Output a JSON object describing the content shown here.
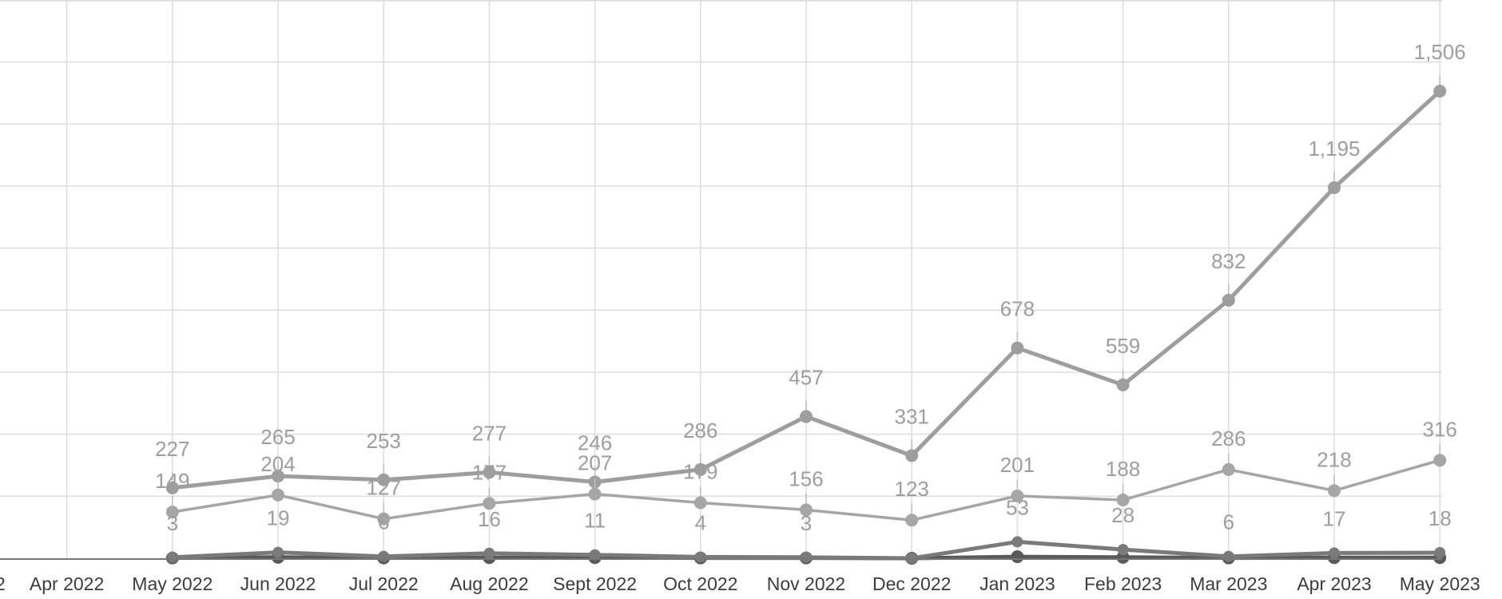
{
  "chart_data": {
    "type": "line",
    "title": "",
    "xlabel": "",
    "ylabel": "",
    "ylim": [
      0,
      1800
    ],
    "grid": true,
    "legend": "none",
    "partial_first_tick": "2",
    "categories": [
      "Apr 2022",
      "May 2022",
      "Jun 2022",
      "Jul 2022",
      "Aug 2022",
      "Sept 2022",
      "Oct 2022",
      "Nov 2022",
      "Dec 2022",
      "Jan 2023",
      "Feb 2023",
      "Mar 2023",
      "Apr 2023",
      "May 2023"
    ],
    "colors": {
      "series_a": "#9e9e9e",
      "series_b": "#a6a6a6",
      "series_c": "#7a7a7a",
      "series_d": "#595959",
      "grid": "#dddddd",
      "axis": "#777777"
    },
    "series": [
      {
        "values": [
          null,
          227,
          265,
          253,
          277,
          246,
          286,
          457,
          331,
          678,
          559,
          832,
          1195,
          1506
        ],
        "labels": [
          "",
          "227",
          "265",
          "253",
          "277",
          "246",
          "286",
          "457",
          "331",
          "678",
          "559",
          "832",
          "1,195",
          "1,506"
        ]
      },
      {
        "values": [
          null,
          149,
          204,
          127,
          177,
          207,
          179,
          156,
          123,
          201,
          188,
          286,
          218,
          316
        ],
        "labels": [
          "",
          "149",
          "204",
          "127",
          "177",
          "207",
          "179",
          "156",
          "123",
          "201",
          "188",
          "286",
          "218",
          "316"
        ]
      },
      {
        "values": [
          null,
          3,
          19,
          6,
          16,
          11,
          4,
          3,
          0,
          53,
          28,
          6,
          17,
          18
        ],
        "labels": [
          "",
          "3",
          "19",
          "6",
          "16",
          "11",
          "4",
          "3",
          "",
          "53",
          "28",
          "6",
          "17",
          "18"
        ]
      },
      {
        "values": [
          null,
          1,
          3,
          1,
          2,
          2,
          1,
          1,
          0,
          5,
          3,
          1,
          2,
          2
        ],
        "labels": []
      }
    ]
  }
}
